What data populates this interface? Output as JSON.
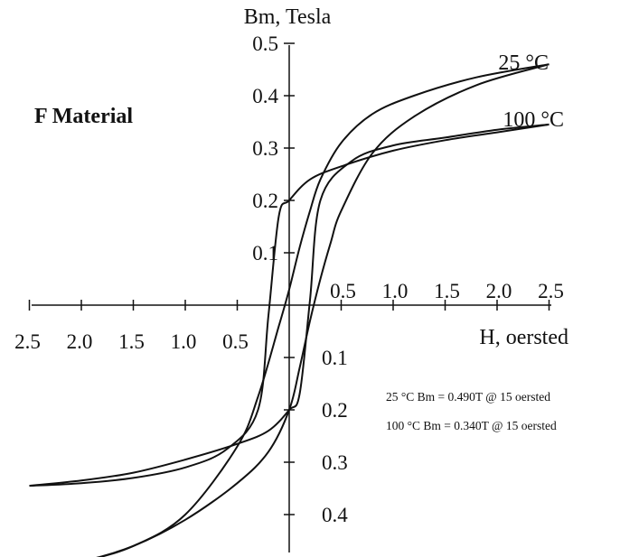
{
  "chart_data": {
    "type": "line",
    "title": "F Material",
    "xlabel": "H, oersted",
    "ylabel": "Bm, Tesla",
    "xlim": [
      -2.5,
      2.5
    ],
    "ylim": [
      -0.5,
      0.5
    ],
    "x_ticks": [
      -2.5,
      -2.0,
      -1.5,
      -1.0,
      -0.5,
      0.5,
      1.0,
      1.5,
      2.0,
      2.5
    ],
    "x_tick_labels_left": [
      "2.5",
      "2.0",
      "1.5",
      "1.0",
      "0.5"
    ],
    "x_tick_labels_right": [
      "0.5",
      "1.0",
      "1.5",
      "2.0",
      "2.5"
    ],
    "y_tick_labels_pos": [
      "0.5",
      "0.4",
      "0.3",
      "0.2",
      "0.1"
    ],
    "y_tick_labels_neg": [
      "0.1",
      "0.2",
      "0.3",
      "0.4"
    ],
    "grid": false,
    "series": [
      {
        "name": "25 °C",
        "color": "#111111",
        "upper_branch": [
          [
            -2.5,
            -0.51
          ],
          [
            -2.0,
            -0.49
          ],
          [
            -1.5,
            -0.46
          ],
          [
            -1.0,
            -0.4
          ],
          [
            -0.5,
            -0.27
          ],
          [
            -0.3,
            -0.175
          ],
          [
            -0.1,
            -0.04
          ],
          [
            0.0,
            0.03
          ],
          [
            0.1,
            0.11
          ],
          [
            0.2,
            0.18
          ],
          [
            0.3,
            0.24
          ],
          [
            0.5,
            0.31
          ],
          [
            0.8,
            0.365
          ],
          [
            1.2,
            0.4
          ],
          [
            1.8,
            0.435
          ],
          [
            2.5,
            0.46
          ]
        ],
        "lower_branch": [
          [
            -2.5,
            -0.51
          ],
          [
            -2.0,
            -0.49
          ],
          [
            -1.5,
            -0.46
          ],
          [
            -1.0,
            -0.41
          ],
          [
            -0.5,
            -0.34
          ],
          [
            -0.2,
            -0.28
          ],
          [
            0.0,
            -0.2
          ],
          [
            0.1,
            -0.12
          ],
          [
            0.2,
            -0.03
          ],
          [
            0.3,
            0.05
          ],
          [
            0.4,
            0.12
          ],
          [
            0.5,
            0.18
          ],
          [
            0.8,
            0.29
          ],
          [
            1.2,
            0.36
          ],
          [
            1.8,
            0.42
          ],
          [
            2.5,
            0.46
          ]
        ]
      },
      {
        "name": "100 °C",
        "color": "#111111",
        "upper_branch": [
          [
            -2.5,
            -0.345
          ],
          [
            -2.0,
            -0.34
          ],
          [
            -1.5,
            -0.33
          ],
          [
            -1.0,
            -0.31
          ],
          [
            -0.6,
            -0.275
          ],
          [
            -0.3,
            -0.2
          ],
          [
            -0.2,
            -0.02
          ],
          [
            -0.1,
            0.17
          ],
          [
            0.0,
            0.2
          ],
          [
            0.2,
            0.24
          ],
          [
            0.5,
            0.265
          ],
          [
            1.0,
            0.295
          ],
          [
            1.5,
            0.315
          ],
          [
            2.0,
            0.33
          ],
          [
            2.5,
            0.345
          ]
        ],
        "lower_branch": [
          [
            -2.5,
            -0.345
          ],
          [
            -2.0,
            -0.335
          ],
          [
            -1.5,
            -0.32
          ],
          [
            -1.0,
            -0.295
          ],
          [
            -0.5,
            -0.265
          ],
          [
            -0.2,
            -0.24
          ],
          [
            0.0,
            -0.2
          ],
          [
            0.1,
            -0.17
          ],
          [
            0.2,
            0.01
          ],
          [
            0.3,
            0.2
          ],
          [
            0.6,
            0.275
          ],
          [
            1.0,
            0.305
          ],
          [
            1.5,
            0.32
          ],
          [
            2.0,
            0.335
          ],
          [
            2.5,
            0.345
          ]
        ]
      }
    ],
    "annotations": [
      "25 °C    Bm = 0.490T @ 15 oersted",
      "100 °C Bm = 0.340T @ 15 oersted"
    ]
  }
}
